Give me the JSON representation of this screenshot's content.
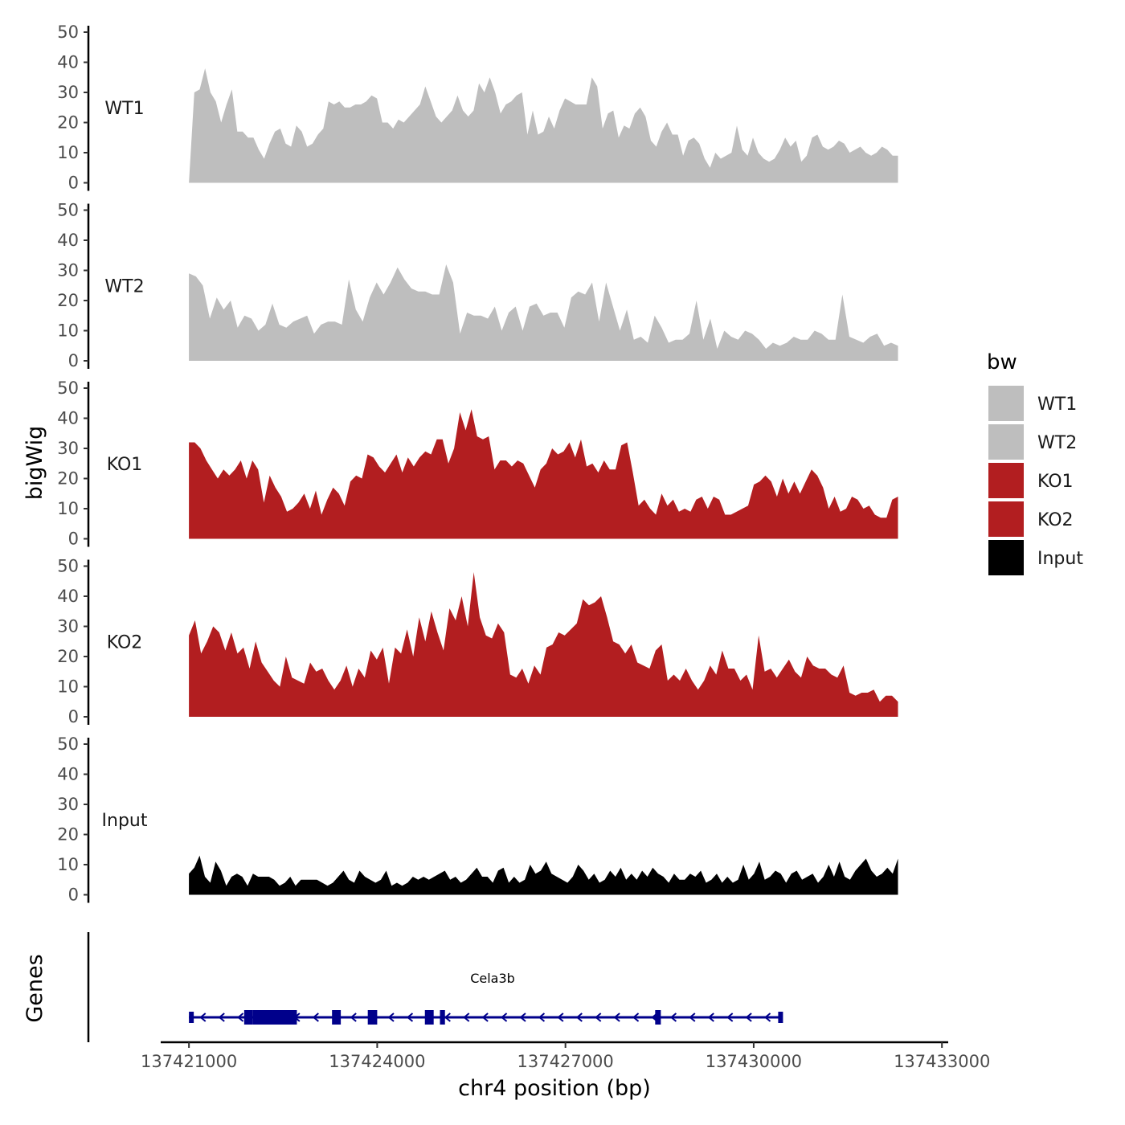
{
  "chart_data": {
    "type": "area",
    "ylabel": "bigWig",
    "xlabel": "chr4 position (bp)",
    "genes_label": "Genes",
    "x_range": [
      137421000,
      137432300
    ],
    "x_axis_limits": [
      137420550,
      137433100
    ],
    "x_ticks": [
      137421000,
      137424000,
      137427000,
      137430000,
      137433000
    ],
    "x_tick_labels": [
      "137421000",
      "137424000",
      "137427000",
      "137430000",
      "137433000"
    ],
    "ylim": [
      0,
      50
    ],
    "y_ticks": [
      0,
      10,
      20,
      30,
      40,
      50
    ],
    "legend": {
      "title": "bw",
      "position": "right",
      "entries": [
        {
          "label": "WT1",
          "color": "#bebebe"
        },
        {
          "label": "WT2",
          "color": "#bebebe"
        },
        {
          "label": "KO1",
          "color": "#b21e20"
        },
        {
          "label": "KO2",
          "color": "#b21e20"
        },
        {
          "label": "Input",
          "color": "#000000"
        }
      ]
    },
    "series": [
      {
        "name": "WT1",
        "color": "#bebebe",
        "values": [
          0,
          30,
          31,
          38,
          30,
          27,
          20,
          26,
          31,
          17,
          17,
          15,
          15,
          11,
          8,
          13,
          17,
          18,
          13,
          12,
          19,
          17,
          12,
          13,
          16,
          18,
          27,
          26,
          27,
          25,
          25,
          26,
          26,
          27,
          29,
          28,
          20,
          20,
          18,
          21,
          20,
          22,
          24,
          26,
          32,
          27,
          22,
          20,
          22,
          24,
          29,
          24,
          22,
          24,
          33,
          30,
          35,
          30,
          23,
          26,
          27,
          29,
          30,
          16,
          24,
          16,
          17,
          22,
          18,
          24,
          28,
          27,
          26,
          26,
          26,
          35,
          32,
          18,
          23,
          24,
          15,
          19,
          18,
          23,
          25,
          22,
          14,
          12,
          17,
          20,
          16,
          16,
          9,
          14,
          15,
          13,
          8,
          5,
          10,
          8,
          9,
          10,
          19,
          11,
          9,
          15,
          10,
          8,
          7,
          8,
          11,
          15,
          12,
          14,
          7,
          9,
          15,
          16,
          12,
          11,
          12,
          14,
          13,
          10,
          11,
          12,
          10,
          9,
          10,
          12,
          11,
          9,
          9
        ]
      },
      {
        "name": "WT2",
        "color": "#bebebe",
        "values": [
          29,
          28,
          25,
          14,
          21,
          17,
          20,
          11,
          15,
          14,
          10,
          12,
          19,
          12,
          11,
          13,
          14,
          15,
          9,
          12,
          13,
          13,
          12,
          27,
          17,
          13,
          21,
          26,
          22,
          26,
          31,
          27,
          24,
          23,
          23,
          22,
          22,
          32,
          26,
          9,
          16,
          15,
          15,
          14,
          18,
          10,
          16,
          18,
          10,
          18,
          19,
          15,
          16,
          16,
          11,
          21,
          23,
          22,
          26,
          13,
          26,
          18,
          10,
          17,
          7,
          8,
          6,
          15,
          11,
          6,
          7,
          7,
          9,
          20,
          7,
          14,
          4,
          10,
          8,
          7,
          10,
          9,
          7,
          4,
          6,
          5,
          6,
          8,
          7,
          7,
          10,
          9,
          7,
          7,
          22,
          8,
          7,
          6,
          8,
          9,
          5,
          6,
          5
        ]
      },
      {
        "name": "KO1",
        "color": "#b21e20",
        "values": [
          32,
          32,
          30,
          26,
          23,
          20,
          23,
          21,
          23,
          26,
          20,
          26,
          23,
          12,
          21,
          17,
          14,
          9,
          10,
          12,
          15,
          10,
          16,
          8,
          13,
          17,
          15,
          11,
          19,
          21,
          20,
          28,
          27,
          24,
          22,
          25,
          28,
          22,
          27,
          24,
          27,
          29,
          28,
          33,
          33,
          25,
          30,
          42,
          36,
          43,
          34,
          33,
          34,
          23,
          26,
          26,
          24,
          26,
          25,
          21,
          17,
          23,
          25,
          30,
          28,
          29,
          32,
          27,
          33,
          24,
          25,
          22,
          26,
          23,
          23,
          31,
          32,
          22,
          11,
          13,
          10,
          8,
          15,
          11,
          13,
          9,
          10,
          9,
          13,
          14,
          10,
          14,
          13,
          8,
          8,
          9,
          10,
          11,
          18,
          19,
          21,
          19,
          14,
          20,
          15,
          19,
          15,
          19,
          23,
          21,
          17,
          10,
          14,
          9,
          10,
          14,
          13,
          10,
          11,
          8,
          7,
          7,
          13,
          14
        ]
      },
      {
        "name": "KO2",
        "color": "#b21e20",
        "values": [
          27,
          32,
          21,
          25,
          30,
          28,
          22,
          28,
          21,
          23,
          16,
          25,
          18,
          15,
          12,
          10,
          20,
          13,
          12,
          11,
          18,
          15,
          16,
          12,
          9,
          12,
          17,
          10,
          16,
          13,
          22,
          19,
          23,
          11,
          23,
          21,
          29,
          20,
          33,
          25,
          35,
          28,
          22,
          36,
          32,
          40,
          30,
          48,
          33,
          27,
          26,
          31,
          28,
          14,
          13,
          16,
          11,
          17,
          14,
          23,
          24,
          28,
          27,
          29,
          31,
          39,
          37,
          38,
          40,
          33,
          25,
          24,
          21,
          24,
          18,
          17,
          16,
          22,
          24,
          12,
          14,
          12,
          16,
          12,
          9,
          12,
          17,
          14,
          22,
          16,
          16,
          12,
          14,
          9,
          27,
          15,
          16,
          13,
          16,
          19,
          15,
          13,
          20,
          17,
          16,
          16,
          14,
          13,
          17,
          8,
          7,
          8,
          8,
          9,
          5,
          7,
          7,
          5
        ]
      },
      {
        "name": "Input",
        "color": "#000000",
        "values": [
          7,
          9,
          13,
          6,
          4,
          11,
          8,
          3,
          6,
          7,
          6,
          3,
          7,
          6,
          6,
          6,
          5,
          3,
          4,
          6,
          3,
          5,
          5,
          5,
          5,
          4,
          3,
          4,
          6,
          8,
          5,
          4,
          8,
          6,
          5,
          4,
          5,
          8,
          3,
          4,
          3,
          4,
          6,
          5,
          6,
          5,
          6,
          7,
          8,
          5,
          6,
          4,
          5,
          7,
          9,
          6,
          6,
          4,
          8,
          9,
          4,
          6,
          4,
          5,
          10,
          7,
          8,
          11,
          7,
          6,
          5,
          4,
          6,
          10,
          8,
          5,
          7,
          4,
          5,
          8,
          6,
          9,
          5,
          7,
          5,
          8,
          6,
          9,
          7,
          6,
          4,
          7,
          5,
          5,
          7,
          6,
          8,
          4,
          5,
          7,
          4,
          6,
          4,
          5,
          10,
          5,
          7,
          11,
          5,
          6,
          8,
          7,
          4,
          7,
          8,
          5,
          6,
          7,
          4,
          6,
          10,
          6,
          11,
          6,
          5,
          8,
          10,
          12,
          8,
          6,
          7,
          9,
          7,
          12
        ]
      }
    ],
    "gene": {
      "name": "Cela3b",
      "start": 137421000,
      "end": 137430450,
      "strand": "-",
      "color": "#00008b",
      "exons": [
        [
          137421000,
          137421060,
          "small"
        ],
        [
          137421880,
          137422020,
          "large"
        ],
        [
          137422020,
          137422720,
          "large"
        ],
        [
          137423280,
          137423420,
          "large"
        ],
        [
          137423850,
          137424000,
          "large"
        ],
        [
          137424760,
          137424900,
          "large"
        ],
        [
          137425000,
          137425080,
          "large"
        ],
        [
          137428430,
          137428520,
          "large"
        ],
        [
          137430390,
          137430450,
          "small"
        ]
      ]
    }
  }
}
